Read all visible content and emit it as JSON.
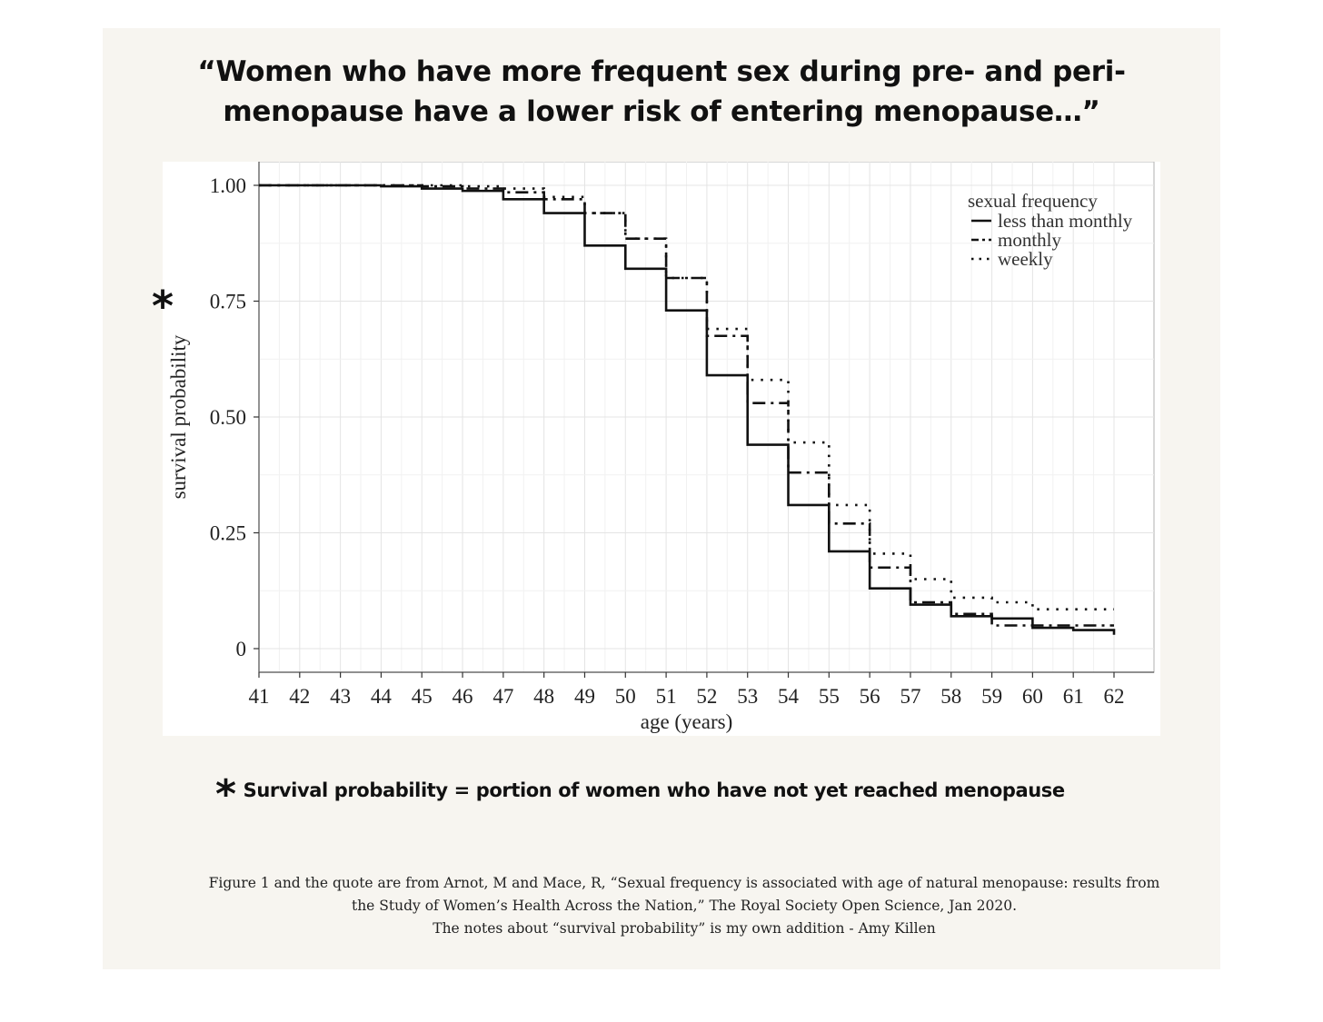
{
  "headline": {
    "line1": "“Women who have more frequent sex during pre- and peri-",
    "line2": "menopause have a lower risk of entering menopause…”"
  },
  "axis_asterisk": "*",
  "footnote": {
    "star": "*",
    "text": "Survival probability = portion of women who have not yet reached menopause"
  },
  "citation": {
    "line1": "Figure 1 and the quote are from Arnot, M and Mace, R, “Sexual frequency is associated with age of natural menopause: results from",
    "line2": "the Study of Women’s Health Across the Nation,” The Royal Society Open Science, Jan 2020.",
    "line3": "The notes about “survival probability” is my own addition - Amy Killen"
  },
  "colors": {
    "line": "#111111",
    "grid": "#e4e4e4",
    "panel": "#f7f5f0"
  },
  "chart_data": {
    "type": "line",
    "title": "",
    "xlabel": "age (years)",
    "ylabel": "survival probability",
    "xlim": [
      41,
      62
    ],
    "ylim": [
      0,
      1
    ],
    "xticks": [
      41,
      42,
      43,
      44,
      45,
      46,
      47,
      48,
      49,
      50,
      51,
      52,
      53,
      54,
      55,
      56,
      57,
      58,
      59,
      60,
      61,
      62
    ],
    "yticks": [
      0,
      0.25,
      0.5,
      0.75,
      1.0
    ],
    "ytick_labels": [
      "0",
      "0.25",
      "0.50",
      "0.75",
      "1.00"
    ],
    "grid": true,
    "step": true,
    "legend": {
      "title": "sexual frequency",
      "position": "top-right"
    },
    "x": [
      41,
      42,
      43,
      44,
      45,
      46,
      47,
      48,
      49,
      50,
      51,
      52,
      53,
      54,
      55,
      56,
      57,
      58,
      59,
      60,
      61,
      62
    ],
    "series": [
      {
        "name": "less than monthly",
        "style": "solid",
        "values": [
          1.0,
          1.0,
          1.0,
          0.998,
          0.993,
          0.988,
          0.97,
          0.94,
          0.87,
          0.82,
          0.73,
          0.59,
          0.44,
          0.31,
          0.21,
          0.13,
          0.095,
          0.07,
          0.065,
          0.045,
          0.04,
          0.03
        ]
      },
      {
        "name": "monthly",
        "style": "dashdot",
        "values": [
          1.0,
          1.0,
          1.0,
          1.0,
          0.998,
          0.993,
          0.985,
          0.97,
          0.94,
          0.885,
          0.8,
          0.675,
          0.53,
          0.38,
          0.27,
          0.175,
          0.1,
          0.075,
          0.05,
          0.05,
          0.05,
          0.05
        ]
      },
      {
        "name": "weekly",
        "style": "dotted",
        "values": [
          1.0,
          1.0,
          1.0,
          1.0,
          1.0,
          0.998,
          0.993,
          0.975,
          0.94,
          0.885,
          0.8,
          0.69,
          0.58,
          0.445,
          0.31,
          0.205,
          0.15,
          0.11,
          0.1,
          0.085,
          0.085,
          0.085
        ]
      }
    ]
  }
}
